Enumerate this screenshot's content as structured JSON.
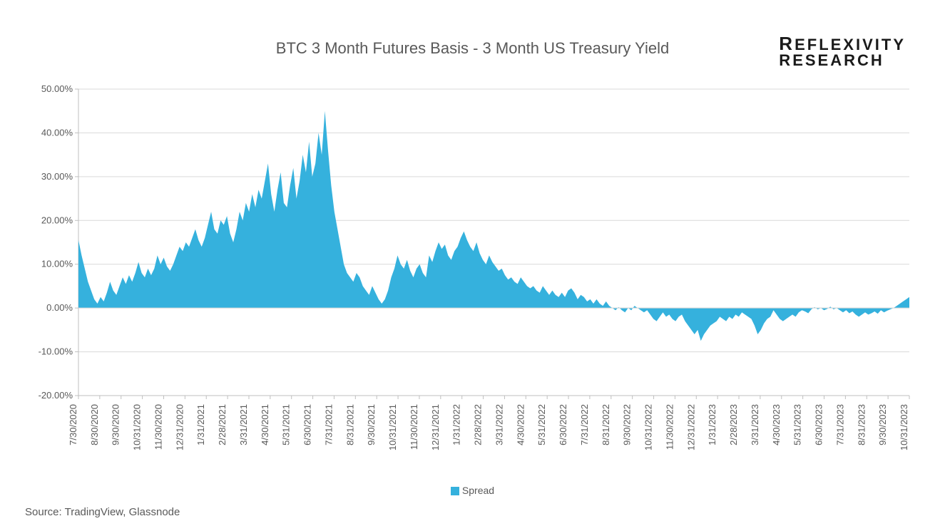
{
  "title": "BTC 3 Month Futures Basis - 3 Month US Treasury Yield",
  "logo": {
    "line1_prefix": "R",
    "line1_rest": "EFLEXIVITY",
    "line2_prefix": "R",
    "line2_rest": "ESEARCH"
  },
  "legend": {
    "label": "Spread",
    "swatch_color": "#35b1dd"
  },
  "source": "Source: TradingView, Glassnode",
  "chart": {
    "type": "area",
    "background_color": "#ffffff",
    "grid_color": "#d9d9d9",
    "axis_color": "#bfbfbf",
    "series_color": "#35b1dd",
    "series_opacity": 1.0,
    "label_fontsize": 13,
    "title_fontsize": 22,
    "ylim": [
      -20,
      50
    ],
    "ytick_step": 10,
    "yticks": [
      -20,
      -10,
      0,
      10,
      20,
      30,
      40,
      50
    ],
    "ytick_labels": [
      "-20.00%",
      "-10.00%",
      "0.00%",
      "10.00%",
      "20.00%",
      "30.00%",
      "40.00%",
      "50.00%"
    ],
    "xtick_labels": [
      "7/30/2020",
      "8/30/2020",
      "9/30/2020",
      "10/31/2020",
      "11/30/2020",
      "12/31/2020",
      "1/31/2021",
      "2/28/2021",
      "3/31/2021",
      "4/30/2021",
      "5/31/2021",
      "6/30/2021",
      "7/31/2021",
      "8/31/2021",
      "9/30/2021",
      "10/31/2021",
      "11/30/2021",
      "12/31/2021",
      "1/31/2022",
      "2/28/2022",
      "3/31/2022",
      "4/30/2022",
      "5/31/2022",
      "6/30/2022",
      "7/31/2022",
      "8/31/2022",
      "9/30/2022",
      "10/31/2022",
      "11/30/2022",
      "12/31/2022",
      "1/31/2023",
      "2/28/2023",
      "3/31/2023",
      "4/30/2023",
      "5/31/2023",
      "6/30/2023",
      "7/31/2023",
      "8/31/2023",
      "9/30/2023",
      "10/31/2023"
    ],
    "values": [
      15.5,
      12.0,
      9.0,
      6.0,
      4.0,
      2.0,
      1.0,
      2.5,
      1.5,
      3.5,
      6.0,
      4.0,
      3.0,
      5.0,
      7.0,
      5.5,
      7.5,
      6.0,
      8.0,
      10.5,
      8.0,
      7.0,
      9.0,
      7.5,
      9.0,
      12.0,
      10.0,
      11.5,
      9.5,
      8.5,
      10.0,
      12.0,
      14.0,
      13.0,
      15.0,
      14.0,
      16.0,
      18.0,
      15.5,
      14.0,
      16.0,
      19.0,
      22.0,
      18.0,
      17.0,
      20.0,
      19.0,
      21.0,
      17.0,
      15.0,
      18.0,
      22.0,
      20.0,
      24.0,
      22.0,
      26.0,
      23.0,
      27.0,
      25.0,
      29.0,
      33.0,
      26.0,
      22.0,
      27.0,
      31.0,
      24.0,
      23.0,
      28.0,
      32.0,
      25.0,
      29.0,
      35.0,
      31.0,
      38.0,
      30.0,
      33.0,
      40.0,
      35.0,
      45.0,
      36.0,
      28.0,
      22.0,
      18.0,
      14.0,
      10.0,
      8.0,
      7.0,
      6.0,
      8.0,
      7.0,
      5.0,
      4.0,
      3.0,
      5.0,
      3.5,
      2.0,
      1.0,
      2.0,
      4.0,
      7.0,
      9.0,
      12.0,
      10.0,
      9.0,
      11.0,
      8.5,
      7.0,
      9.0,
      10.0,
      8.0,
      7.0,
      12.0,
      10.5,
      13.0,
      15.0,
      13.5,
      14.5,
      12.0,
      11.0,
      13.0,
      14.0,
      16.0,
      17.5,
      15.5,
      14.0,
      13.0,
      15.0,
      12.5,
      11.0,
      10.0,
      12.0,
      10.5,
      9.5,
      8.5,
      9.0,
      7.5,
      6.5,
      7.0,
      6.0,
      5.5,
      7.0,
      6.0,
      5.0,
      4.5,
      5.0,
      4.0,
      3.5,
      5.0,
      4.0,
      3.0,
      4.0,
      3.0,
      2.5,
      3.5,
      2.5,
      4.0,
      4.5,
      3.5,
      2.0,
      3.0,
      2.5,
      1.5,
      2.0,
      1.0,
      2.0,
      1.0,
      0.5,
      1.5,
      0.5,
      0.0,
      -0.5,
      0.2,
      -0.5,
      -1.0,
      0.0,
      -0.5,
      0.5,
      0.0,
      -0.5,
      -1.0,
      -0.5,
      -1.5,
      -2.5,
      -3.0,
      -2.0,
      -1.0,
      -2.0,
      -1.5,
      -2.5,
      -3.0,
      -2.0,
      -1.5,
      -3.0,
      -4.0,
      -5.0,
      -6.0,
      -5.0,
      -7.5,
      -6.0,
      -5.0,
      -4.0,
      -3.5,
      -3.0,
      -2.0,
      -2.5,
      -3.0,
      -2.0,
      -2.5,
      -1.5,
      -2.0,
      -1.0,
      -1.5,
      -2.0,
      -2.5,
      -4.0,
      -6.0,
      -5.0,
      -3.5,
      -2.5,
      -2.0,
      -0.5,
      -1.5,
      -2.5,
      -3.0,
      -2.5,
      -2.0,
      -1.5,
      -2.0,
      -1.0,
      -0.5,
      -0.8,
      -1.2,
      -0.3,
      0.2,
      -0.3,
      0.0,
      -0.5,
      -0.2,
      0.3,
      -0.3,
      0.0,
      -0.5,
      -1.0,
      -0.5,
      -1.2,
      -0.8,
      -1.5,
      -2.0,
      -1.5,
      -1.0,
      -1.5,
      -1.2,
      -0.8,
      -1.3,
      -0.5,
      -1.0,
      -0.6,
      -0.3,
      0.0,
      0.5,
      1.0,
      1.5,
      2.0,
      2.5
    ]
  }
}
